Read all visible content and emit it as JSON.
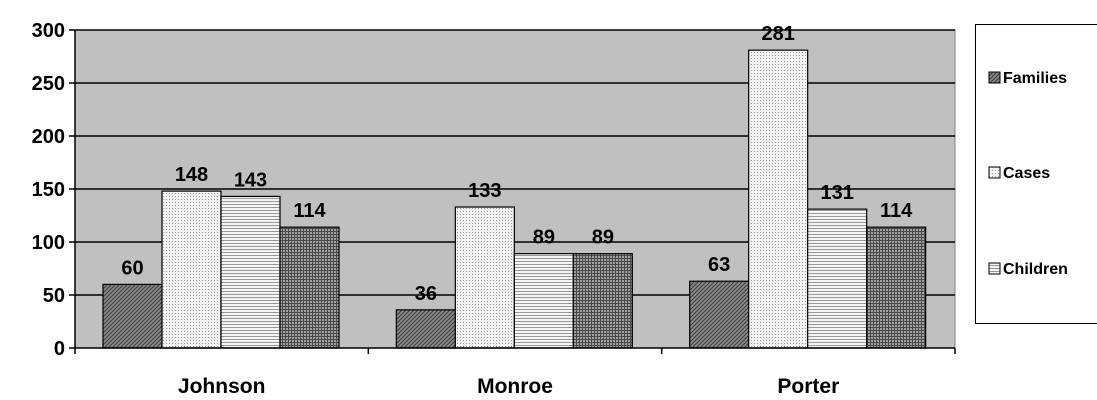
{
  "chart_data": {
    "type": "bar",
    "categories": [
      "Johnson",
      "Monroe",
      "Porter"
    ],
    "series": [
      {
        "name": "Families",
        "values": [
          60,
          36,
          63
        ],
        "pattern": "diag"
      },
      {
        "name": "Cases",
        "values": [
          148,
          133,
          281
        ],
        "pattern": "dots"
      },
      {
        "name": "Children",
        "values": [
          143,
          89,
          131
        ],
        "pattern": "hlines"
      }
    ],
    "extra_series": [
      {
        "name": "",
        "values": [
          114,
          89,
          114
        ],
        "pattern": "grid"
      }
    ],
    "ylim": [
      0,
      300
    ],
    "yticks": [
      0,
      50,
      100,
      150,
      200,
      250,
      300
    ],
    "grid": true,
    "plot_background": "#c0c0c0",
    "legend_position": "right",
    "title": "",
    "xlabel": "",
    "ylabel": ""
  }
}
